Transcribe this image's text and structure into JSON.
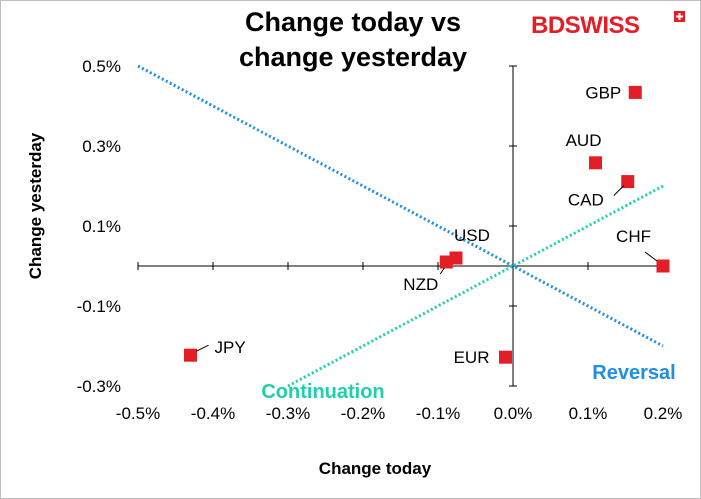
{
  "chart_data": {
    "type": "scatter",
    "title_lines": [
      "Change today vs",
      "change yesterday"
    ],
    "xlabel": "Change today",
    "ylabel": "Change yesterday",
    "xlim": [
      -0.5,
      0.2
    ],
    "ylim": [
      -0.3,
      0.5
    ],
    "xticks": [
      -0.5,
      -0.4,
      -0.3,
      -0.2,
      -0.1,
      0.0,
      0.1,
      0.2
    ],
    "xtick_labels": [
      "-0.5%",
      "-0.4%",
      "-0.3%",
      "-0.2%",
      "-0.1%",
      "0.0%",
      "0.1%",
      "0.2%"
    ],
    "yticks": [
      0.5,
      0.3,
      0.1,
      -0.1,
      -0.3
    ],
    "ytick_labels": [
      "0.5%",
      "0.3%",
      "0.1%",
      "-0.1%",
      "-0.3%"
    ],
    "points": [
      {
        "label": "GBP",
        "x": 0.163,
        "y": 0.434
      },
      {
        "label": "AUD",
        "x": 0.11,
        "y": 0.258
      },
      {
        "label": "CAD",
        "x": 0.153,
        "y": 0.211
      },
      {
        "label": "CHF",
        "x": 0.2,
        "y": 0.0
      },
      {
        "label": "USD",
        "x": -0.076,
        "y": 0.02
      },
      {
        "label": "NZD",
        "x": -0.089,
        "y": 0.01
      },
      {
        "label": "EUR",
        "x": -0.01,
        "y": -0.228
      },
      {
        "label": "JPY",
        "x": -0.43,
        "y": -0.223
      }
    ],
    "series_style": {
      "marker": "square",
      "color": "#e41e26"
    },
    "reference_lines": [
      {
        "name": "Reversal",
        "slope": -1,
        "x_range": [
          -0.5,
          0.2
        ],
        "color": "#1f8fe5"
      },
      {
        "name": "Continuation",
        "slope": 1,
        "x_range": [
          -0.3,
          0.2
        ],
        "color": "#1fd1a9"
      }
    ],
    "annotations": [
      "Continuation",
      "Reversal"
    ]
  },
  "brand": {
    "name_part1": "BD",
    "name_part2": "SWISS",
    "color": "#e41e26"
  }
}
